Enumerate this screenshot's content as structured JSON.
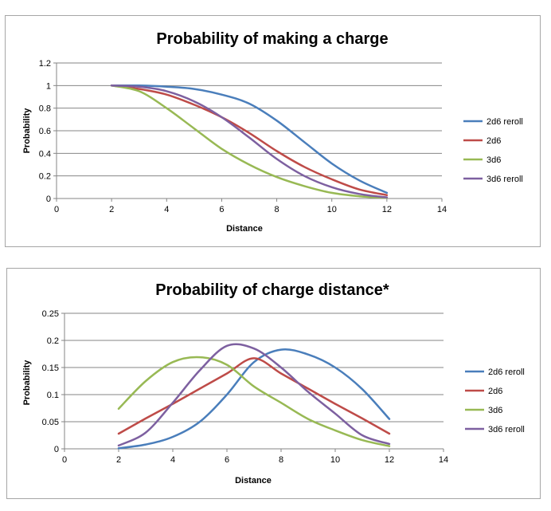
{
  "chart_data": [
    {
      "type": "line",
      "title": "Probability of making a charge",
      "xlabel": "Distance",
      "ylabel": "Probability",
      "xlim": [
        0,
        14
      ],
      "ylim": [
        0,
        1.2
      ],
      "xticks": [
        0,
        2,
        4,
        6,
        8,
        10,
        12,
        14
      ],
      "yticks": [
        0,
        0.2,
        0.4,
        0.6,
        0.8,
        1,
        1.2
      ],
      "ytick_labels": [
        "0",
        "0.2",
        "0.4",
        "0.6",
        "0.8",
        "1",
        "1.2"
      ],
      "grid": "horizontal",
      "legend_position": "right",
      "series": [
        {
          "name": "2d6 reroll",
          "color": "#4a7ebb",
          "x": [
            2,
            3,
            4,
            5,
            6,
            7,
            8,
            9,
            10,
            11,
            12
          ],
          "y": [
            1.0,
            1.0,
            0.99,
            0.97,
            0.92,
            0.84,
            0.69,
            0.5,
            0.31,
            0.16,
            0.05
          ]
        },
        {
          "name": "2d6",
          "color": "#be4b48",
          "x": [
            2,
            3,
            4,
            5,
            6,
            7,
            8,
            9,
            10,
            11,
            12
          ],
          "y": [
            1.0,
            0.97,
            0.92,
            0.83,
            0.72,
            0.58,
            0.42,
            0.28,
            0.17,
            0.08,
            0.03
          ]
        },
        {
          "name": "3d6",
          "color": "#98b954",
          "x": [
            2,
            3,
            4,
            5,
            6,
            7,
            8,
            9,
            10,
            11,
            12
          ],
          "y": [
            1.0,
            0.95,
            0.8,
            0.62,
            0.44,
            0.3,
            0.19,
            0.11,
            0.05,
            0.02,
            0.005
          ]
        },
        {
          "name": "3d6 reroll",
          "color": "#7d60a0",
          "x": [
            2,
            3,
            4,
            5,
            6,
            7,
            8,
            9,
            10,
            11,
            12
          ],
          "y": [
            1.0,
            0.99,
            0.95,
            0.86,
            0.72,
            0.54,
            0.35,
            0.2,
            0.1,
            0.04,
            0.01
          ]
        }
      ]
    },
    {
      "type": "line",
      "title": "Probability of charge distance*",
      "xlabel": "Distance",
      "ylabel": "Probability",
      "xlim": [
        0,
        14
      ],
      "ylim": [
        0,
        0.25
      ],
      "xticks": [
        0,
        2,
        4,
        6,
        8,
        10,
        12,
        14
      ],
      "yticks": [
        0,
        0.05,
        0.1,
        0.15,
        0.2,
        0.25
      ],
      "ytick_labels": [
        "0",
        "0.05",
        "0.1",
        "0.15",
        "0.2",
        "0.25"
      ],
      "grid": "horizontal",
      "legend_position": "right",
      "series": [
        {
          "name": "2d6 reroll",
          "color": "#4a7ebb",
          "x": [
            2,
            3,
            4,
            5,
            6,
            7,
            8,
            9,
            10,
            11,
            12
          ],
          "y": [
            0.001,
            0.008,
            0.022,
            0.05,
            0.1,
            0.16,
            0.183,
            0.174,
            0.15,
            0.11,
            0.055
          ]
        },
        {
          "name": "2d6",
          "color": "#be4b48",
          "x": [
            2,
            3,
            4,
            5,
            6,
            7,
            8,
            9,
            10,
            11,
            12
          ],
          "y": [
            0.028,
            0.056,
            0.083,
            0.111,
            0.139,
            0.167,
            0.139,
            0.111,
            0.083,
            0.056,
            0.028
          ]
        },
        {
          "name": "3d6",
          "color": "#98b954",
          "x": [
            2,
            3,
            4,
            5,
            6,
            7,
            8,
            9,
            10,
            11,
            12
          ],
          "y": [
            0.074,
            0.125,
            0.16,
            0.169,
            0.155,
            0.115,
            0.085,
            0.055,
            0.034,
            0.016,
            0.005
          ]
        },
        {
          "name": "3d6 reroll",
          "color": "#7d60a0",
          "x": [
            2,
            3,
            4,
            5,
            6,
            7,
            8,
            9,
            10,
            11,
            12
          ],
          "y": [
            0.006,
            0.03,
            0.085,
            0.145,
            0.19,
            0.185,
            0.15,
            0.105,
            0.065,
            0.025,
            0.009
          ]
        }
      ]
    }
  ]
}
